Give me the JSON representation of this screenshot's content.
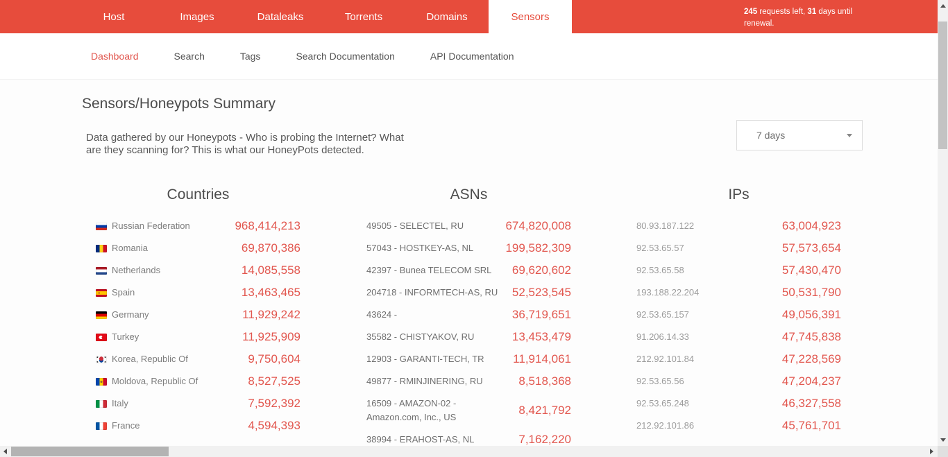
{
  "topnav": {
    "items": [
      "Host",
      "Images",
      "Dataleaks",
      "Torrents",
      "Domains",
      "Sensors"
    ],
    "active_item": "Sensors",
    "quota": {
      "requests": "245",
      "mid": " requests left, ",
      "days": "31",
      "tail": " days until renewal."
    }
  },
  "subnav": {
    "items": [
      "Dashboard",
      "Search",
      "Tags",
      "Search Documentation",
      "API Documentation"
    ],
    "active_item": "Dashboard"
  },
  "page": {
    "title": "Sensors/Honeypots Summary",
    "intro_line1": "Data gathered by our Honeypots - Who is probing the Internet? What",
    "intro_line2": "are they scanning for? This is what our HoneyPots detected.",
    "period_selected": "7 days"
  },
  "colors": {
    "accent": "#e74c3c",
    "value_red": "#e2574f"
  },
  "columns": {
    "countries": {
      "header": "Countries",
      "rows": [
        {
          "name": "Russian Federation",
          "value": "968,414,213",
          "flag": "ru"
        },
        {
          "name": "Romania",
          "value": "69,870,386",
          "flag": "ro"
        },
        {
          "name": "Netherlands",
          "value": "14,085,558",
          "flag": "nl"
        },
        {
          "name": "Spain",
          "value": "13,463,465",
          "flag": "es"
        },
        {
          "name": "Germany",
          "value": "11,929,242",
          "flag": "de"
        },
        {
          "name": "Turkey",
          "value": "11,925,909",
          "flag": "tr"
        },
        {
          "name": "Korea, Republic Of",
          "value": "9,750,604",
          "flag": "kr"
        },
        {
          "name": "Moldova, Republic Of",
          "value": "8,527,525",
          "flag": "md"
        },
        {
          "name": "Italy",
          "value": "7,592,392",
          "flag": "it"
        },
        {
          "name": "France",
          "value": "4,594,393",
          "flag": "fr"
        }
      ]
    },
    "asns": {
      "header": "ASNs",
      "rows": [
        {
          "name": "49505 - SELECTEL, RU",
          "value": "674,820,008"
        },
        {
          "name": "57043 - HOSTKEY-AS, NL",
          "value": "199,582,309"
        },
        {
          "name": "42397 - Bunea TELECOM SRL",
          "value": "69,620,602"
        },
        {
          "name": "204718 - INFORMTECH-AS, RU",
          "value": "52,523,545"
        },
        {
          "name": "43624 -",
          "value": "36,719,651"
        },
        {
          "name": "35582 - CHISTYAKOV, RU",
          "value": "13,453,479"
        },
        {
          "name": "12903 - GARANTI-TECH, TR",
          "value": "11,914,061"
        },
        {
          "name": "49877 - RMINJINERING, RU",
          "value": "8,518,368"
        },
        {
          "name": "16509 - AMAZON-02 - Amazon.com, Inc., US",
          "value": "8,421,792"
        },
        {
          "name": "38994 - ERAHOST-AS, NL",
          "value": "7,162,220"
        }
      ]
    },
    "ips": {
      "header": "IPs",
      "rows": [
        {
          "name": "80.93.187.122",
          "value": "63,004,923"
        },
        {
          "name": "92.53.65.57",
          "value": "57,573,654"
        },
        {
          "name": "92.53.65.58",
          "value": "57,430,470"
        },
        {
          "name": "193.188.22.204",
          "value": "50,531,790"
        },
        {
          "name": "92.53.65.157",
          "value": "49,056,391"
        },
        {
          "name": "91.206.14.33",
          "value": "47,745,838"
        },
        {
          "name": "212.92.101.84",
          "value": "47,228,569"
        },
        {
          "name": "92.53.65.56",
          "value": "47,204,237"
        },
        {
          "name": "92.53.65.248",
          "value": "46,327,558"
        },
        {
          "name": "212.92.101.86",
          "value": "45,761,701"
        }
      ]
    }
  }
}
